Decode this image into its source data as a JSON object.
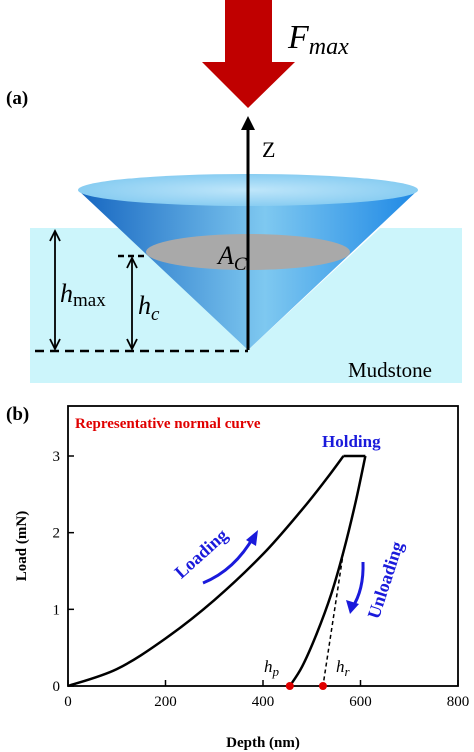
{
  "panel_a": {
    "label": "(a)",
    "force_label": "F",
    "force_subscript": "max",
    "z_axis_label": "Z",
    "area_label": "A",
    "area_subscript": "C",
    "hmax_label": "h",
    "hmax_subscript": "max",
    "hc_label": "h",
    "hc_subscript": "c",
    "material_label": "Mudstone",
    "colors": {
      "arrow": "#c00000",
      "cone_dark": "#1565c0",
      "cone_light": "#7ec8f0",
      "sample": "#ccf5fb",
      "contact_ellipse": "#a9a9a9"
    }
  },
  "panel_b": {
    "label": "(b)",
    "curve_title": "Representative normal curve",
    "holding_label": "Holding",
    "loading_label": "Loading",
    "unloading_label": "Unloading",
    "hp_label": "h",
    "hp_subscript": "p",
    "hr_label": "h",
    "hr_subscript": "r",
    "colors": {
      "title": "#e00000",
      "annotation": "#1a1adb",
      "curve": "#000000",
      "point": "#e00000"
    }
  },
  "chart_data": {
    "type": "line",
    "title": "Representative normal curve",
    "xlabel": "Depth (nm)",
    "ylabel": "Load (mN)",
    "xlim": [
      0,
      800
    ],
    "ylim": [
      0,
      3.2
    ],
    "xticks": [
      0,
      200,
      400,
      600,
      800
    ],
    "yticks": [
      0,
      1,
      2,
      3
    ],
    "grid": false,
    "series": [
      {
        "name": "Loading",
        "x": [
          0,
          100,
          200,
          300,
          400,
          480,
          530,
          565
        ],
        "y": [
          0,
          0.22,
          0.62,
          1.12,
          1.72,
          2.3,
          2.7,
          3.0
        ]
      },
      {
        "name": "Holding",
        "x": [
          565,
          610
        ],
        "y": [
          3.0,
          3.0
        ]
      },
      {
        "name": "Unloading",
        "x": [
          610,
          590,
          565,
          540,
          510,
          480,
          455
        ],
        "y": [
          3.0,
          2.4,
          1.75,
          1.2,
          0.68,
          0.25,
          0
        ]
      },
      {
        "name": "Tangent",
        "x": [
          565,
          523
        ],
        "y": [
          1.75,
          0
        ]
      }
    ],
    "points": [
      {
        "name": "h_p",
        "x": 455,
        "y": 0
      },
      {
        "name": "h_r",
        "x": 523,
        "y": 0
      }
    ]
  }
}
